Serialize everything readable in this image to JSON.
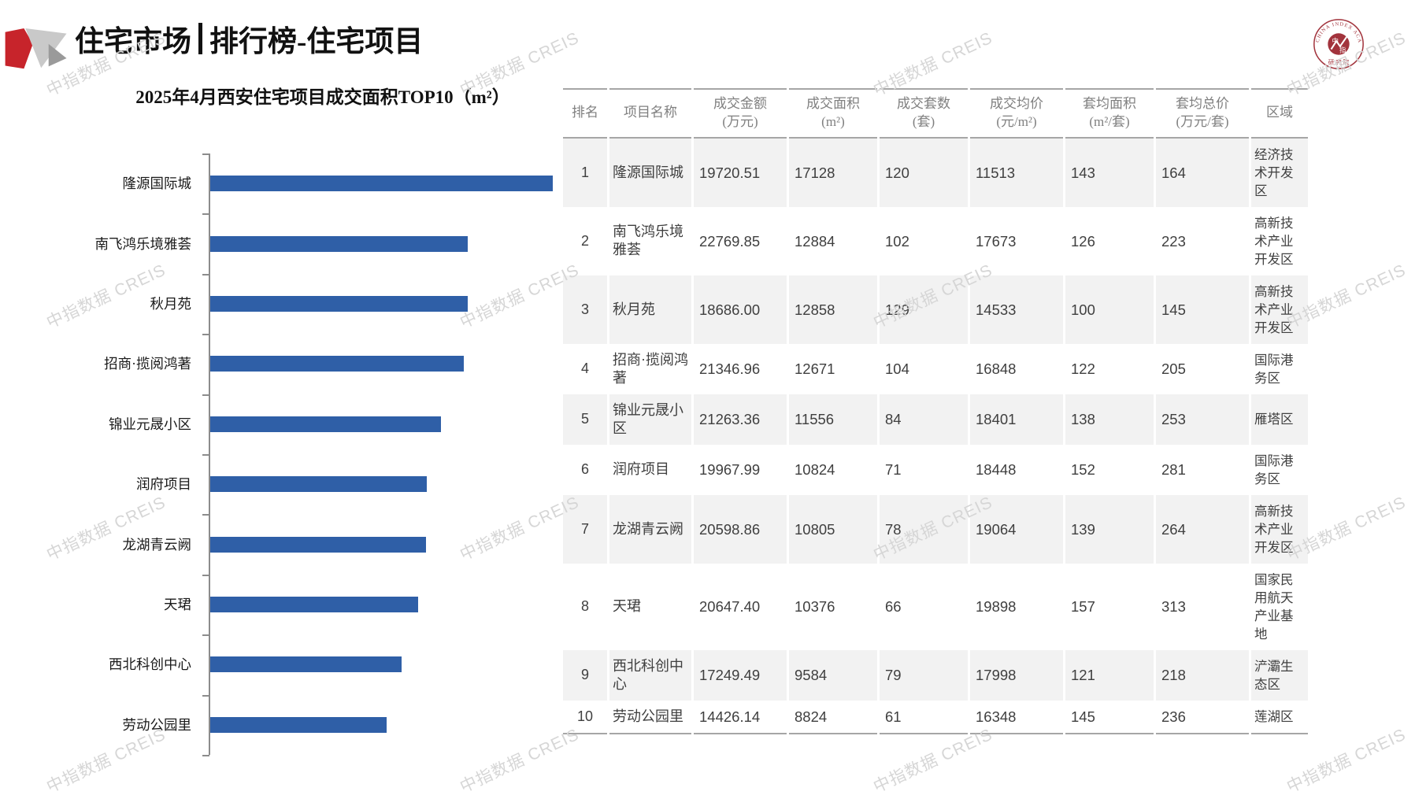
{
  "page": {
    "title_part1": "住宅市场",
    "title_part2": "排行榜-住宅项目",
    "watermark_text": "中指数据 CREIS"
  },
  "seal": {
    "ring_text": "CHINA INDEX ACADEMY",
    "center_char1": "中",
    "center_char2": "指",
    "bottom_text": "研 究 院"
  },
  "chart_data": {
    "type": "bar",
    "orientation": "horizontal",
    "title": "2025年4月西安住宅项目成交面积TOP10（m²）",
    "categories": [
      "隆源国际城",
      "南飞鸿乐境雅荟",
      "秋月苑",
      "招商·揽阅鸿著",
      "锦业元晟小区",
      "润府项目",
      "龙湖青云阙",
      "天珺",
      "西北科创中心",
      "劳动公园里"
    ],
    "values": [
      17128,
      12884,
      12858,
      12671,
      11556,
      10824,
      10805,
      10376,
      9584,
      8824
    ],
    "value_unit": "m²",
    "bar_color": "#2F5FA7",
    "x_axis_labels_shown": false,
    "gridlines": false,
    "legend": "none"
  },
  "table": {
    "columns": [
      {
        "title": "排名",
        "unit": ""
      },
      {
        "title": "项目名称",
        "unit": ""
      },
      {
        "title": "成交金额",
        "unit": "(万元)"
      },
      {
        "title": "成交面积",
        "unit": "(m²)"
      },
      {
        "title": "成交套数",
        "unit": "(套)"
      },
      {
        "title": "成交均价",
        "unit": "(元/m²)"
      },
      {
        "title": "套均面积",
        "unit": "(m²/套)"
      },
      {
        "title": "套均总价",
        "unit": "(万元/套)"
      },
      {
        "title": "区域",
        "unit": ""
      }
    ],
    "rows": [
      {
        "rank": "1",
        "name": "隆源国际城",
        "amount": "19720.51",
        "area": "17128",
        "units": "120",
        "avg_price": "11513",
        "avg_area": "143",
        "avg_total": "164",
        "district": "经济技术开发区"
      },
      {
        "rank": "2",
        "name": "南飞鸿乐境雅荟",
        "amount": "22769.85",
        "area": "12884",
        "units": "102",
        "avg_price": "17673",
        "avg_area": "126",
        "avg_total": "223",
        "district": "高新技术产业开发区"
      },
      {
        "rank": "3",
        "name": "秋月苑",
        "amount": "18686.00",
        "area": "12858",
        "units": "129",
        "avg_price": "14533",
        "avg_area": "100",
        "avg_total": "145",
        "district": "高新技术产业开发区"
      },
      {
        "rank": "4",
        "name": "招商·揽阅鸿著",
        "amount": "21346.96",
        "area": "12671",
        "units": "104",
        "avg_price": "16848",
        "avg_area": "122",
        "avg_total": "205",
        "district": "国际港务区"
      },
      {
        "rank": "5",
        "name": "锦业元晟小区",
        "amount": "21263.36",
        "area": "11556",
        "units": "84",
        "avg_price": "18401",
        "avg_area": "138",
        "avg_total": "253",
        "district": "雁塔区"
      },
      {
        "rank": "6",
        "name": "润府项目",
        "amount": "19967.99",
        "area": "10824",
        "units": "71",
        "avg_price": "18448",
        "avg_area": "152",
        "avg_total": "281",
        "district": "国际港务区"
      },
      {
        "rank": "7",
        "name": "龙湖青云阙",
        "amount": "20598.86",
        "area": "10805",
        "units": "78",
        "avg_price": "19064",
        "avg_area": "139",
        "avg_total": "264",
        "district": "高新技术产业开发区"
      },
      {
        "rank": "8",
        "name": "天珺",
        "amount": "20647.40",
        "area": "10376",
        "units": "66",
        "avg_price": "19898",
        "avg_area": "157",
        "avg_total": "313",
        "district": "国家民用航天产业基地"
      },
      {
        "rank": "9",
        "name": "西北科创中心",
        "amount": "17249.49",
        "area": "9584",
        "units": "79",
        "avg_price": "17998",
        "avg_area": "121",
        "avg_total": "218",
        "district": "浐灞生态区"
      },
      {
        "rank": "10",
        "name": "劳动公园里",
        "amount": "14426.14",
        "area": "8824",
        "units": "61",
        "avg_price": "16348",
        "avg_area": "145",
        "avg_total": "236",
        "district": "莲湖区"
      }
    ]
  },
  "colors": {
    "bar": "#2F5FA7",
    "seal_red": "#A2333C",
    "logo_red": "#C7242B",
    "row_shade": "#F2F2F2",
    "header_text": "#7F7F7F",
    "body_text": "#3F3F3F",
    "line": "#A6A6A6",
    "watermark": "#D6D6D6"
  }
}
